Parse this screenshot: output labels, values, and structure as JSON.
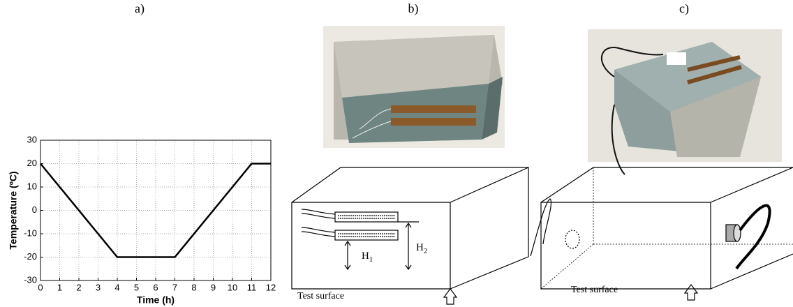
{
  "panel_labels": [
    "a)",
    "b)",
    "c)"
  ],
  "chart_data": {
    "type": "line",
    "xlabel": "Time (h)",
    "ylabel": "Temperature (ºC)",
    "x": [
      0,
      4,
      7,
      11,
      12
    ],
    "series": [
      {
        "color": "#000000",
        "values": [
          20,
          -20,
          -20,
          20,
          20
        ]
      }
    ],
    "xlim": [
      0,
      12
    ],
    "ylim": [
      -30,
      30
    ],
    "xticks": [
      0,
      1,
      2,
      3,
      4,
      5,
      6,
      7,
      8,
      9,
      10,
      11,
      12
    ],
    "yticks": [
      -30,
      -20,
      -10,
      0,
      10,
      20,
      30
    ],
    "grid": true
  },
  "diagram_b": {
    "h1": {
      "letter": "H",
      "sub": "1"
    },
    "h2": {
      "letter": "H",
      "sub": "2"
    },
    "surface": "Test surface"
  },
  "diagram_c": {
    "surface": "Test surface"
  }
}
